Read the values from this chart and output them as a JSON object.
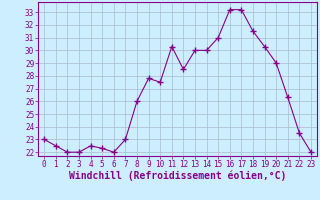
{
  "x": [
    0,
    1,
    2,
    3,
    4,
    5,
    6,
    7,
    8,
    9,
    10,
    11,
    12,
    13,
    14,
    15,
    16,
    17,
    18,
    19,
    20,
    21,
    22,
    23
  ],
  "y": [
    23.0,
    22.5,
    22.0,
    22.0,
    22.5,
    22.3,
    22.0,
    23.0,
    26.0,
    27.8,
    27.5,
    30.3,
    28.5,
    30.0,
    30.0,
    31.0,
    33.2,
    33.2,
    31.5,
    30.3,
    29.0,
    26.3,
    23.5,
    22.0
  ],
  "line_color": "#880088",
  "marker": "+",
  "marker_size": 4,
  "marker_linewidth": 1.0,
  "bg_color": "#cceeff",
  "grid_color": "#aabbcc",
  "xlabel": "Windchill (Refroidissement éolien,°C)",
  "ylabel_ticks": [
    22,
    23,
    24,
    25,
    26,
    27,
    28,
    29,
    30,
    31,
    32,
    33
  ],
  "ylim": [
    21.7,
    33.8
  ],
  "xlim": [
    -0.5,
    23.5
  ],
  "xticks": [
    0,
    1,
    2,
    3,
    4,
    5,
    6,
    7,
    8,
    9,
    10,
    11,
    12,
    13,
    14,
    15,
    16,
    17,
    18,
    19,
    20,
    21,
    22,
    23
  ],
  "tick_fontsize": 5.5,
  "xlabel_fontsize": 7.0,
  "linewidth": 0.8
}
